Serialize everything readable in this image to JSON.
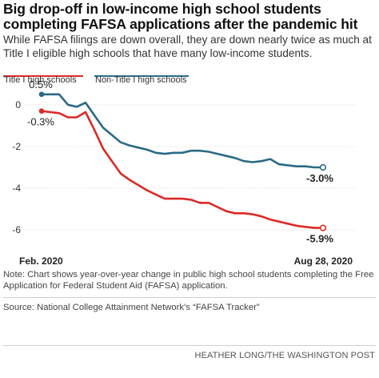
{
  "title": "Big drop-off in low-income high school students completing FAFSA applications after the pandemic hit",
  "subtitle": "While FAFSA filings are down overall, they are down nearly twice as much at Title I eligible high schools that have many low-income students.",
  "legend": [
    {
      "label": "Title I high schools",
      "color": "#dc2a26"
    },
    {
      "label": "Non-Title I high schools",
      "color": "#2b6a86"
    }
  ],
  "note": "Note: Chart shows year-over-year change in public high school students completing the Free Application for Federal Student Aid (FAFSA) application.",
  "source": "Source: National College Attainment Network’s “FAFSA Tracker”",
  "credit": "HEATHER LONG/THE WASHINGTON POST",
  "chart_data": {
    "type": "line",
    "x_labels": {
      "start": "Feb. 2020",
      "end": "Aug 28, 2020"
    },
    "ylim": [
      -6.8,
      0.8
    ],
    "yticks": [
      0,
      -2,
      -4,
      -6
    ],
    "ytick_labels": [
      "0",
      "-2",
      "-4",
      "-6"
    ],
    "grid": true,
    "series": [
      {
        "name": "Title I high schools",
        "color": "#dc2a26",
        "values": [
          -0.3,
          -0.35,
          -0.4,
          -0.6,
          -0.6,
          -0.35,
          -1.2,
          -2.1,
          -2.7,
          -3.3,
          -3.6,
          -3.85,
          -4.1,
          -4.3,
          -4.5,
          -4.5,
          -4.5,
          -4.55,
          -4.7,
          -4.7,
          -4.9,
          -5.1,
          -5.2,
          -5.2,
          -5.25,
          -5.35,
          -5.5,
          -5.6,
          -5.7,
          -5.8,
          -5.85,
          -5.9,
          -5.9
        ],
        "start_label": "-0.3%",
        "end_label": "-5.9%"
      },
      {
        "name": "Non-Title I high schools",
        "color": "#2b6a86",
        "values": [
          0.5,
          0.5,
          0.5,
          0.0,
          -0.1,
          0.1,
          -0.5,
          -1.1,
          -1.45,
          -1.8,
          -1.95,
          -2.05,
          -2.15,
          -2.3,
          -2.35,
          -2.3,
          -2.3,
          -2.2,
          -2.2,
          -2.25,
          -2.35,
          -2.45,
          -2.55,
          -2.7,
          -2.75,
          -2.7,
          -2.6,
          -2.85,
          -2.9,
          -2.95,
          -2.95,
          -3.0,
          -3.0
        ],
        "start_label": "0.5%",
        "end_label": "-3.0%"
      }
    ]
  }
}
